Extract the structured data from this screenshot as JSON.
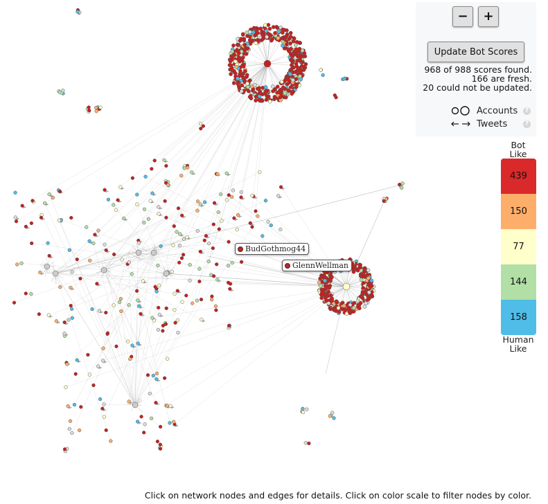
{
  "controls": {
    "zoom_out_label": "−",
    "zoom_in_label": "+",
    "update_button_label": "Update Bot Scores",
    "status": {
      "line1": "968 of 988 scores found.",
      "line2": "166 are fresh.",
      "line3": "20 could not be updated."
    },
    "legend": {
      "accounts_label": "Accounts",
      "tweets_label": "Tweets",
      "help_glyph": "?"
    }
  },
  "color_scale": {
    "top_label_line1": "Bot",
    "top_label_line2": "Like",
    "bottom_label_line1": "Human",
    "bottom_label_line2": "Like",
    "bins": [
      {
        "count": "439",
        "color": "#d9292b"
      },
      {
        "count": "150",
        "color": "#fdae6b"
      },
      {
        "count": "77",
        "color": "#ffffcc"
      },
      {
        "count": "144",
        "color": "#b2dfa6"
      },
      {
        "count": "158",
        "color": "#4fbde8"
      }
    ]
  },
  "network": {
    "labels": [
      {
        "text": "BudGothmog44"
      },
      {
        "text": "GlennWellman"
      }
    ],
    "node_colors": [
      "#c8201e",
      "#c8201e",
      "#c8201e",
      "#fdae6b",
      "#ffffcc",
      "#b2dfa6",
      "#4fbde8",
      "#dddddd"
    ],
    "edge_color": "#9a9a9a"
  },
  "footer": {
    "text": "Click on network nodes and edges for details. Click on color scale to filter nodes by color."
  }
}
